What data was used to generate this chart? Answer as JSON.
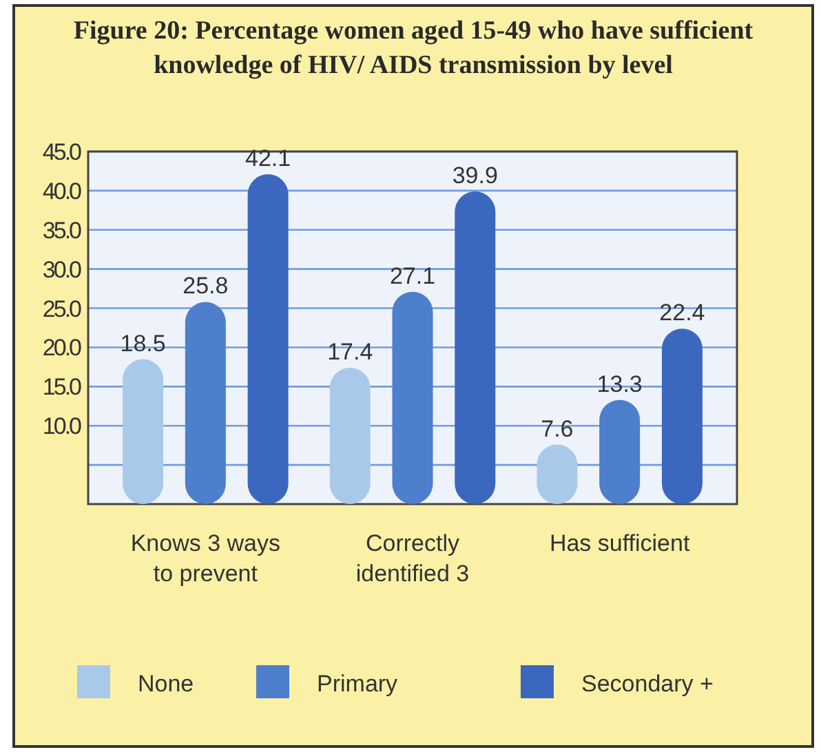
{
  "chart_data": {
    "type": "bar",
    "title": "Figure 20: Percentage women aged 15-49 who have sufficient knowledge of HIV/ AIDS transmission by level",
    "categories": [
      "Knows 3 ways to prevent",
      "Correctly identified 3",
      "Has sufficient"
    ],
    "series": [
      {
        "name": "None",
        "color": "#a9c9ea",
        "values": [
          18.5,
          17.4,
          7.6
        ]
      },
      {
        "name": "Primary",
        "color": "#4d7fcc",
        "values": [
          25.8,
          27.1,
          13.3
        ]
      },
      {
        "name": "Secondary +",
        "color": "#3b67bf",
        "values": [
          42.1,
          39.9,
          22.4
        ]
      }
    ],
    "ylim": [
      0,
      45
    ],
    "yticks": [
      {
        "value": 5,
        "label": null
      },
      {
        "value": 10,
        "label": "10.0"
      },
      {
        "value": 15,
        "label": "15.0"
      },
      {
        "value": 20,
        "label": "20.0"
      },
      {
        "value": 25,
        "label": "25.0"
      },
      {
        "value": 30,
        "label": "30.0"
      },
      {
        "value": 35,
        "label": "35.0"
      },
      {
        "value": 40,
        "label": "40.0"
      },
      {
        "value": 45,
        "label": "45.0"
      }
    ],
    "grid": "y",
    "data_labels": true,
    "legend": "bottom"
  }
}
